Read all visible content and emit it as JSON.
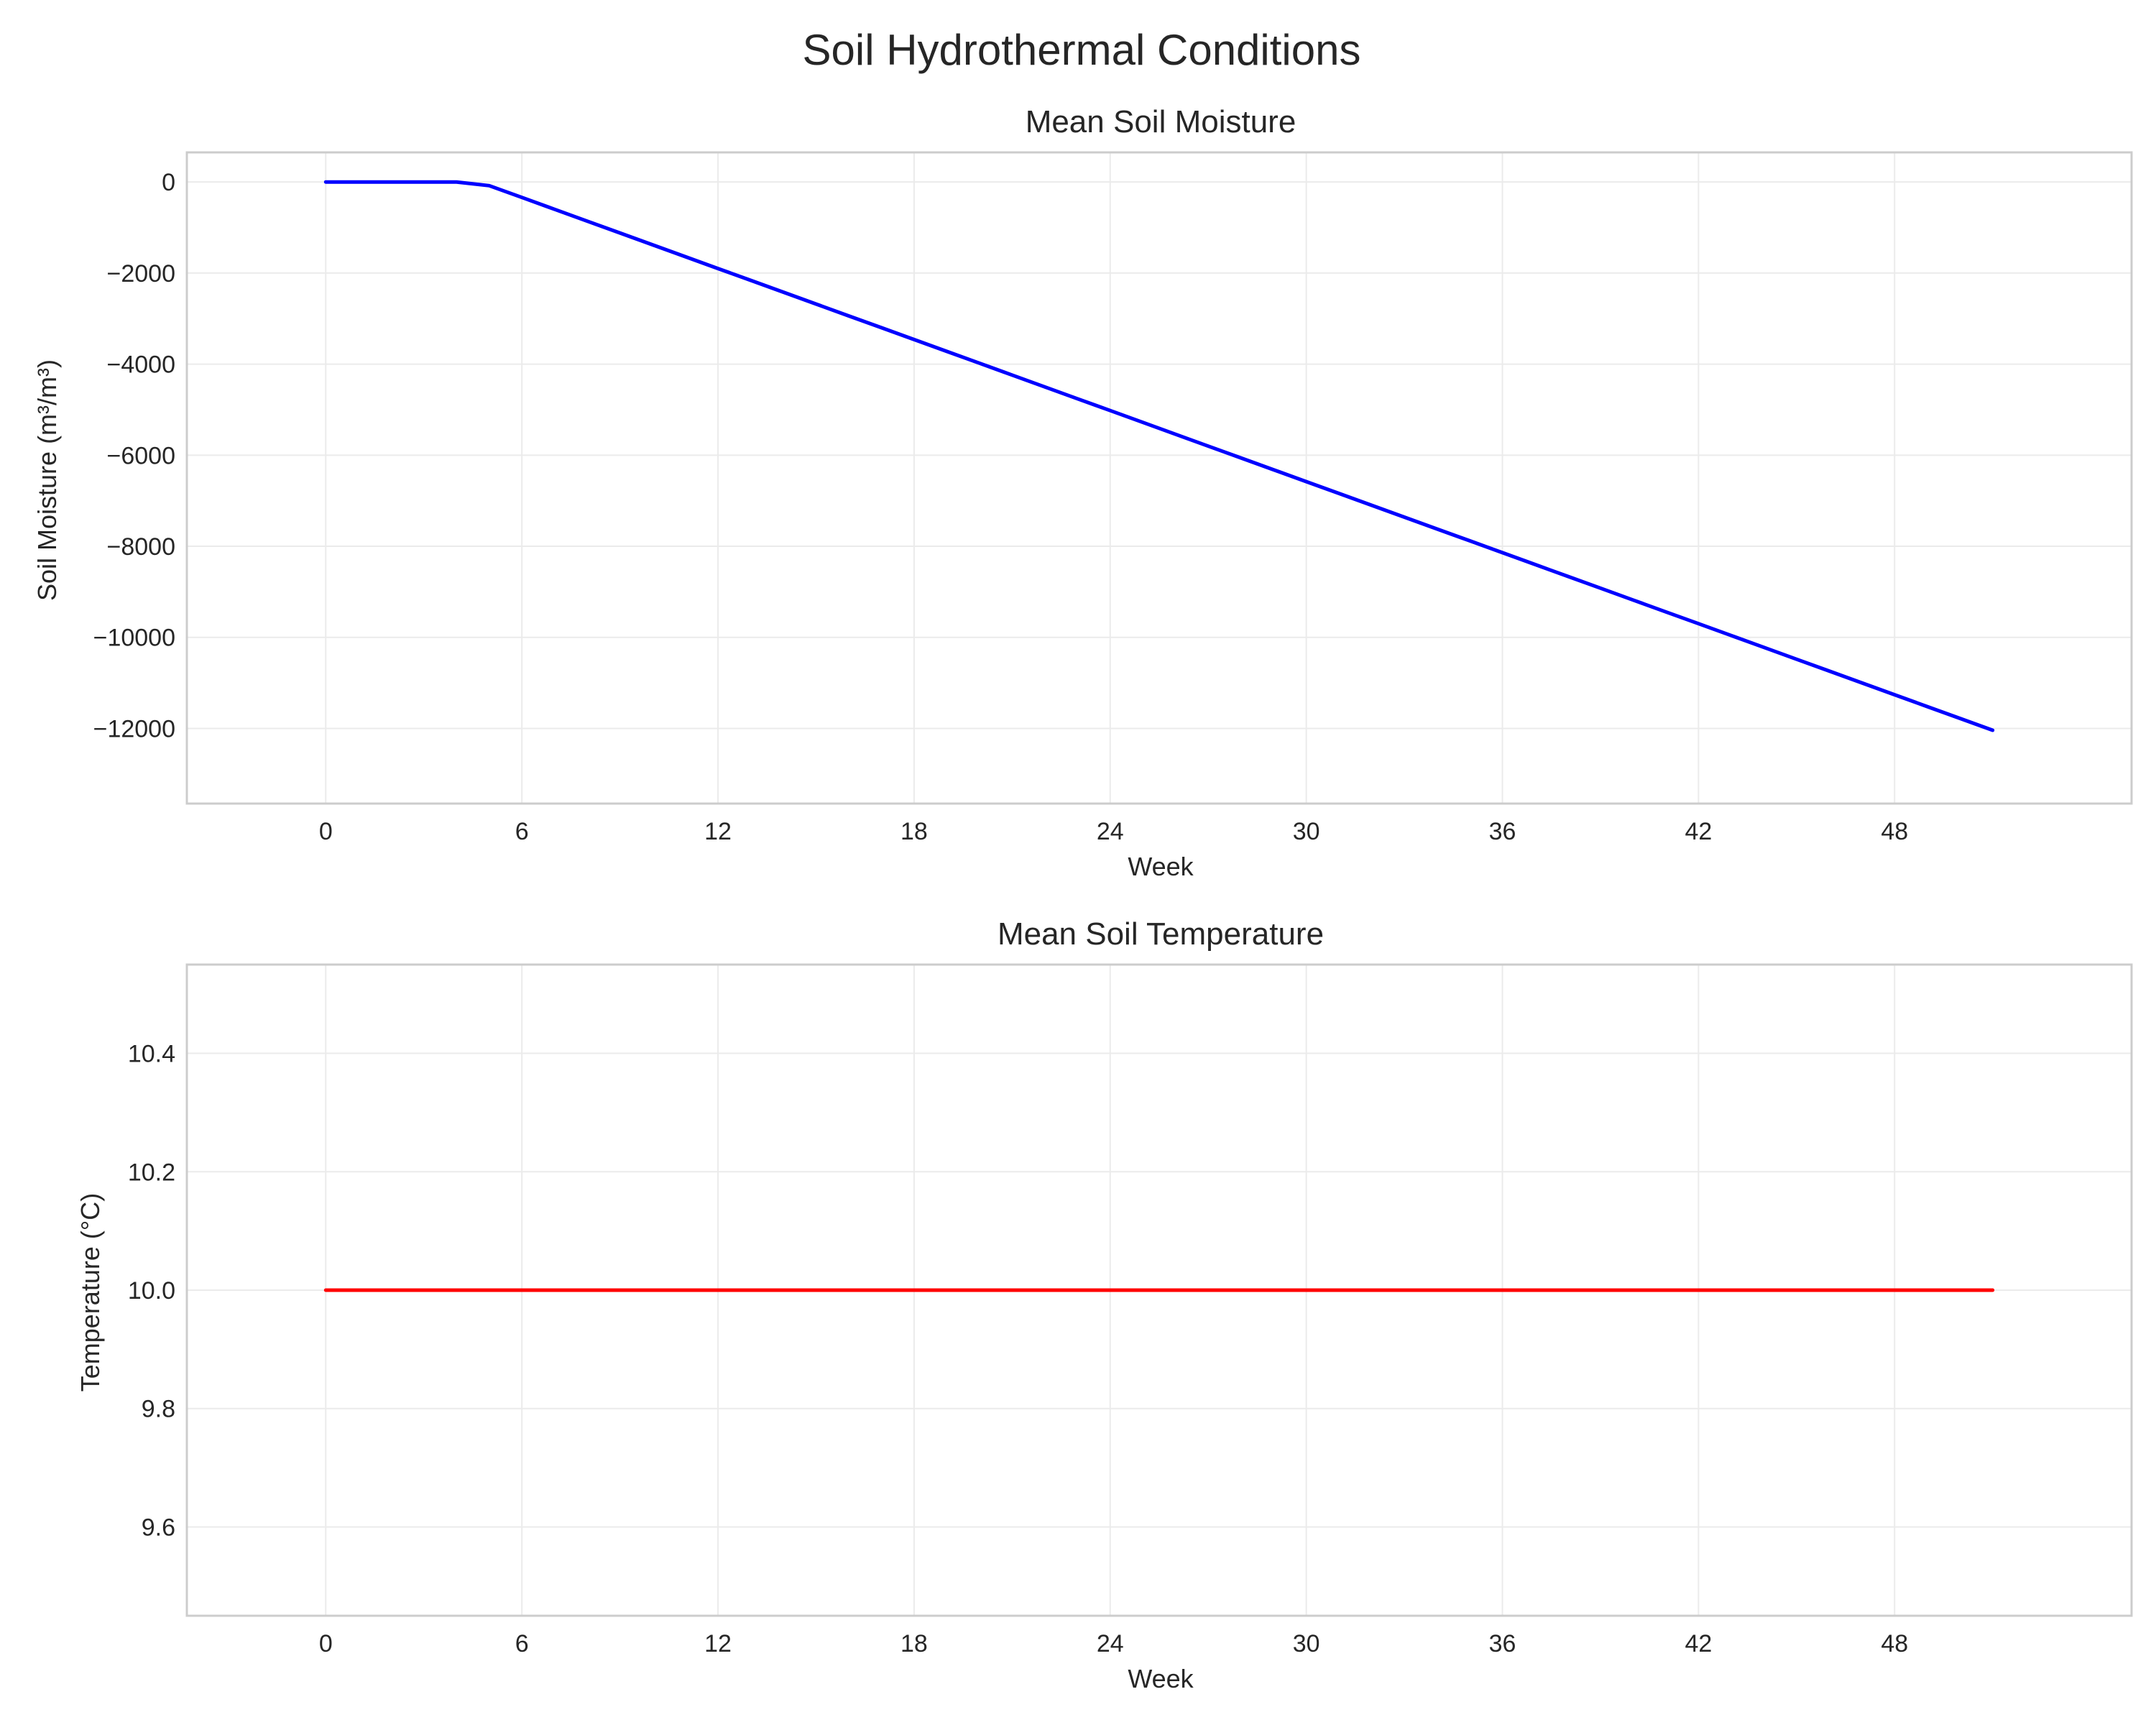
{
  "figure_title": "Soil Hydrothermal Conditions",
  "chart_data": [
    {
      "type": "line",
      "title": "Mean Soil Moisture",
      "xlabel": "Week",
      "ylabel": "Soil Moisture (m³/m³)",
      "xlim": [
        -4.25,
        55.25
      ],
      "ylim": [
        -13650,
        650
      ],
      "xticks": [
        0,
        6,
        12,
        18,
        24,
        30,
        36,
        42,
        48
      ],
      "yticks": [
        0,
        -2000,
        -4000,
        -6000,
        -8000,
        -10000,
        -12000
      ],
      "ytick_labels": [
        "0",
        "−2000",
        "−4000",
        "−6000",
        "−8000",
        "−10000",
        "−12000"
      ],
      "grid": true,
      "series": [
        {
          "color": "#0000ff",
          "x": [
            0,
            1,
            2,
            3,
            4,
            5,
            6,
            7,
            8,
            9,
            10,
            11,
            12,
            13,
            14,
            15,
            16,
            17,
            18,
            19,
            20,
            21,
            22,
            23,
            24,
            25,
            26,
            27,
            28,
            29,
            30,
            31,
            32,
            33,
            34,
            35,
            36,
            37,
            38,
            39,
            40,
            41,
            42,
            43,
            44,
            45,
            46,
            47,
            48,
            49,
            50,
            51
          ],
          "values": [
            0,
            0,
            0,
            0,
            0,
            -80,
            -340,
            -600,
            -860,
            -1120,
            -1380,
            -1640,
            -1900,
            -2160,
            -2420,
            -2680,
            -2940,
            -3200,
            -3460,
            -3720,
            -3980,
            -4240,
            -4500,
            -4760,
            -5020,
            -5280,
            -5540,
            -5800,
            -6060,
            -6320,
            -6580,
            -6840,
            -7100,
            -7360,
            -7620,
            -7880,
            -8140,
            -8400,
            -8660,
            -8920,
            -9180,
            -9440,
            -9700,
            -9960,
            -10220,
            -10480,
            -10740,
            -11000,
            -11260,
            -11520,
            -11780,
            -12040
          ]
        }
      ]
    },
    {
      "type": "line",
      "title": "Mean Soil Temperature",
      "xlabel": "Week",
      "ylabel": "Temperature (°C)",
      "xlim": [
        -4.25,
        55.25
      ],
      "ylim": [
        9.45,
        10.55
      ],
      "xticks": [
        0,
        6,
        12,
        18,
        24,
        30,
        36,
        42,
        48
      ],
      "yticks": [
        9.6,
        9.8,
        10.0,
        10.2,
        10.4
      ],
      "ytick_labels": [
        "9.6",
        "9.8",
        "10.0",
        "10.2",
        "10.4"
      ],
      "grid": true,
      "series": [
        {
          "color": "#ff0000",
          "x": [
            0,
            51
          ],
          "values": [
            10.0,
            10.0
          ]
        }
      ]
    }
  ]
}
